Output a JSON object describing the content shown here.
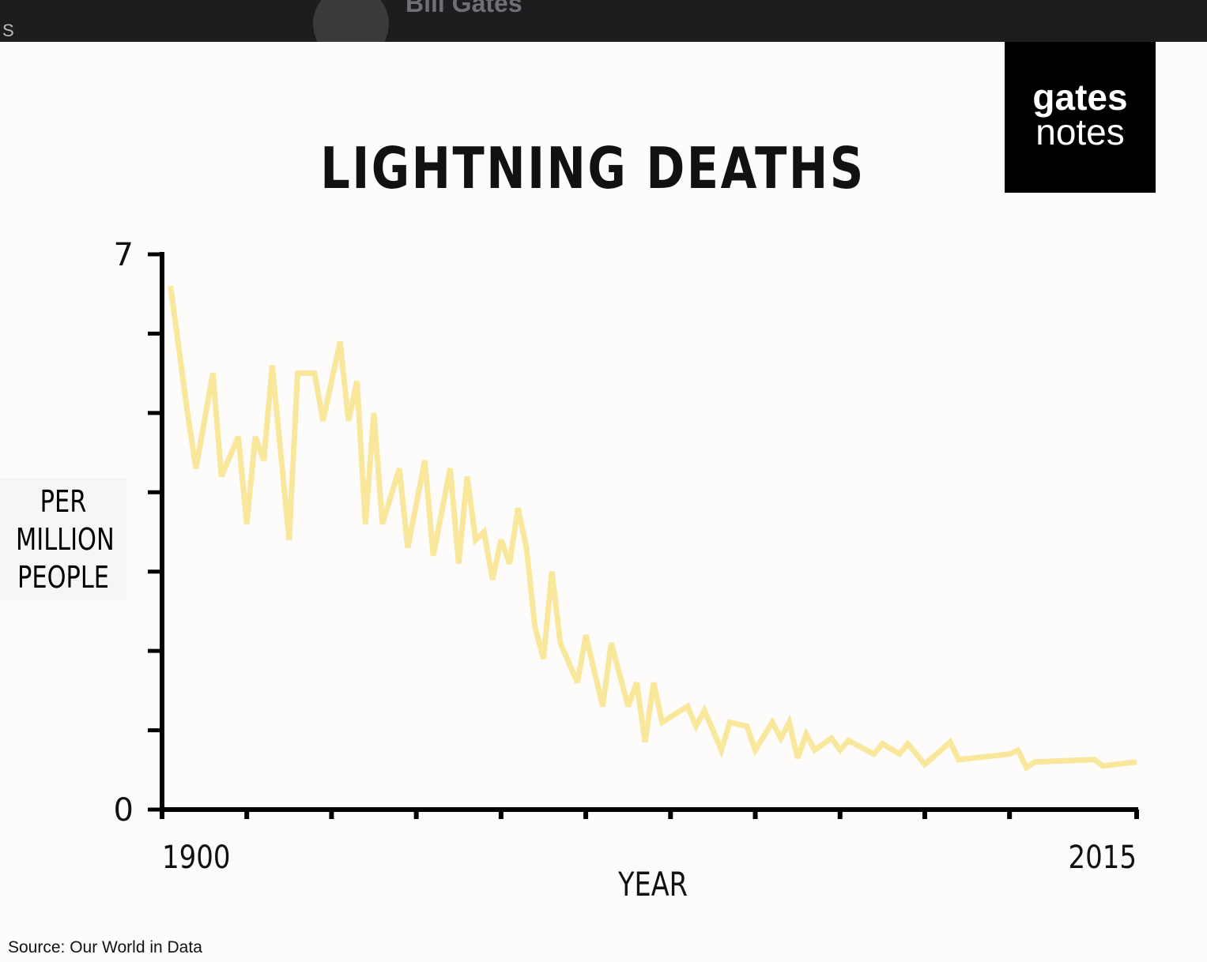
{
  "header": {
    "initial": "S",
    "name": "Bill Gates"
  },
  "logo": {
    "line1": "gates",
    "line2": "notes"
  },
  "chart_data": {
    "type": "line",
    "title": "LIGHTNING DEATHS",
    "xlabel": "YEAR",
    "ylabel": "PER MILLION PEOPLE",
    "color": "#f9e79b",
    "x": [
      1901,
      1903,
      1904,
      1906,
      1907,
      1909,
      1910,
      1911,
      1912,
      1913,
      1915,
      1916,
      1918,
      1919,
      1921,
      1922,
      1923,
      1924,
      1925,
      1926,
      1928,
      1929,
      1931,
      1932,
      1934,
      1935,
      1936,
      1937,
      1938,
      1939,
      1940,
      1941,
      1942,
      1943,
      1944,
      1945,
      1946,
      1947,
      1949,
      1950,
      1952,
      1953,
      1955,
      1956,
      1957,
      1958,
      1959,
      1962,
      1963,
      1964,
      1966,
      1967,
      1969,
      1970,
      1972,
      1973,
      1974,
      1975,
      1976,
      1977,
      1979,
      1980,
      1981,
      1984,
      1985,
      1987,
      1988,
      1990,
      1993,
      1994,
      2000,
      2001,
      2002,
      2003,
      2010,
      2011,
      2015
    ],
    "values": [
      6.6,
      5.0,
      4.3,
      5.5,
      4.2,
      4.7,
      3.6,
      4.7,
      4.4,
      5.6,
      3.4,
      5.5,
      5.5,
      4.9,
      5.9,
      4.9,
      5.4,
      3.6,
      5.0,
      3.6,
      4.3,
      3.3,
      4.4,
      3.2,
      4.3,
      3.1,
      4.2,
      3.4,
      3.5,
      2.9,
      3.4,
      3.1,
      3.8,
      3.3,
      2.3,
      1.9,
      3.0,
      2.1,
      1.6,
      2.2,
      1.3,
      2.1,
      1.3,
      1.6,
      0.85,
      1.6,
      1.1,
      1.3,
      1.05,
      1.25,
      0.75,
      1.1,
      1.05,
      0.75,
      1.1,
      0.9,
      1.1,
      0.65,
      0.95,
      0.75,
      0.9,
      0.75,
      0.87,
      0.7,
      0.83,
      0.7,
      0.83,
      0.57,
      0.85,
      0.63,
      0.7,
      0.75,
      0.53,
      0.6,
      0.63,
      0.55,
      0.6
    ],
    "xlim": [
      1900,
      2015
    ],
    "ylim": [
      0,
      7
    ],
    "xticks": [
      1900,
      2015
    ],
    "yticks": [
      0,
      7
    ],
    "minor_xticks": [
      1910,
      1920,
      1930,
      1940,
      1950,
      1960,
      1970,
      1980,
      1990,
      2000
    ],
    "minor_yticks": [
      1,
      2,
      3,
      4,
      5,
      6
    ]
  },
  "source": "Source: Our World in Data"
}
